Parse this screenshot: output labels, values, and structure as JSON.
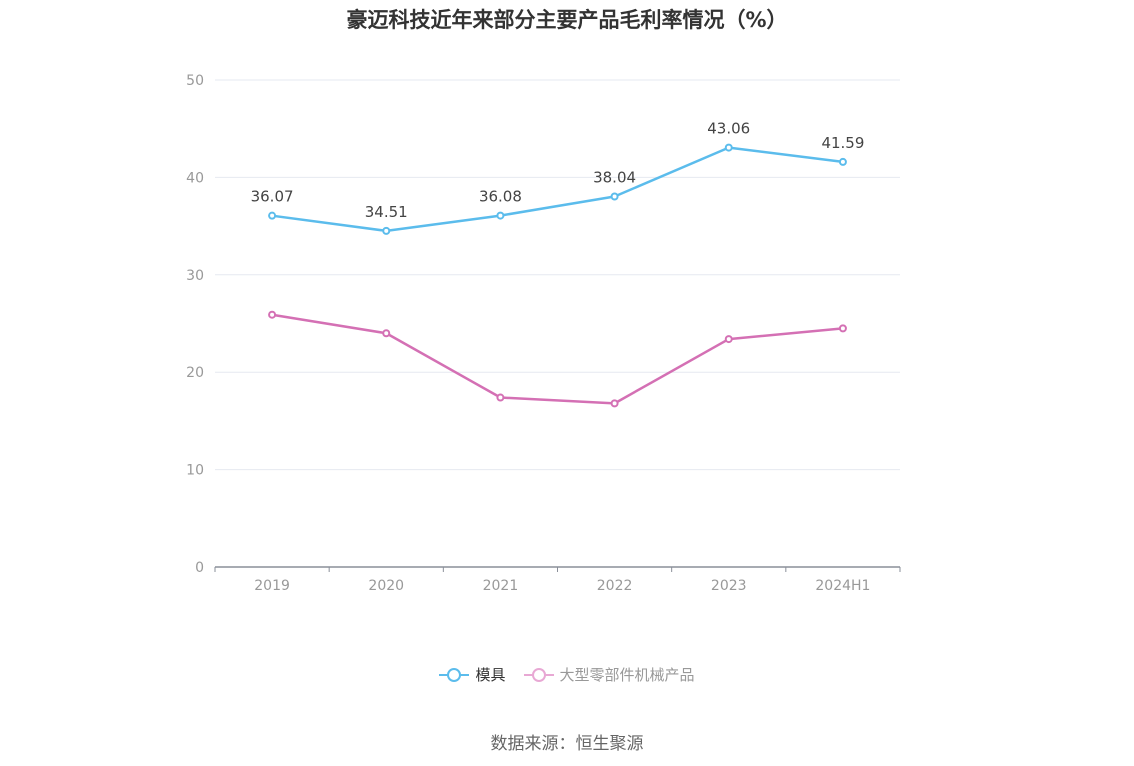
{
  "title": "豪迈科技近年来部分主要产品毛利率情况（%）",
  "source": "数据来源：恒生聚源",
  "chart_data": {
    "type": "line",
    "title": "豪迈科技近年来部分主要产品毛利率情况（%）",
    "categories": [
      "2019",
      "2020",
      "2021",
      "2022",
      "2023",
      "2024H1"
    ],
    "ylim": [
      0,
      50
    ],
    "yticks": [
      "0",
      "10",
      "20",
      "30",
      "40",
      "50"
    ],
    "grid": true,
    "legend_position": "bottom",
    "series": [
      {
        "name": "模具",
        "color": "#5bbcec",
        "values": [
          36.07,
          34.51,
          36.08,
          38.04,
          43.06,
          41.59
        ],
        "labels": [
          "36.07",
          "34.51",
          "36.08",
          "38.04",
          "43.06",
          "41.59"
        ],
        "legend_text_color": "#333333"
      },
      {
        "name": "大型零部件机械产品",
        "color": "#d470b4",
        "legend_color": "#e8a8d4",
        "values": [
          25.9,
          24.0,
          17.4,
          16.8,
          23.4,
          24.5
        ],
        "labels": [],
        "legend_text_color": "#999999"
      }
    ]
  }
}
